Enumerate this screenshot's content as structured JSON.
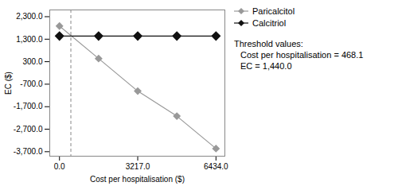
{
  "chart_data": {
    "type": "line",
    "x": [
      0.0,
      1608.5,
      3217.0,
      4825.5,
      6434.0
    ],
    "series": [
      {
        "name": "Paricalcitol",
        "color": "#999999",
        "marker": "diamond",
        "values": [
          1887.0,
          440.0,
          -1007.0,
          -2120.0,
          -3560.0
        ]
      },
      {
        "name": "Calcitriol",
        "color": "#111111",
        "marker": "diamond",
        "values": [
          1440.0,
          1440.0,
          1440.0,
          1440.0,
          1440.0
        ]
      }
    ],
    "threshold_line": {
      "x": 468.1,
      "color": "#888888",
      "line_style": "dashed"
    },
    "xlabel": "Cost per hospitalisation ($)",
    "ylabel": "EC ($)",
    "xlim": [
      -400,
      6800
    ],
    "ylim": [
      -3900,
      2600
    ],
    "xticks": [
      {
        "value": 0.0,
        "label": "0.0"
      },
      {
        "value": 3217.0,
        "label": "3217.0"
      },
      {
        "value": 6434.0,
        "label": "6434.0"
      }
    ],
    "yticks": [
      {
        "value": 2300.0,
        "label": "2,300.0"
      },
      {
        "value": 1300.0,
        "label": "1,300.0"
      },
      {
        "value": 300.0,
        "label": "300.0"
      },
      {
        "value": -700.0,
        "label": "-700.0"
      },
      {
        "value": -1700.0,
        "label": "-1,700.0"
      },
      {
        "value": -2700.0,
        "label": "-2,700.0"
      },
      {
        "value": -3700.0,
        "label": "-3,700.0"
      }
    ],
    "annotations": [
      "Threshold values:",
      "Cost per hospitalisation = 468.1",
      "EC = 1,440.0"
    ],
    "legend": "right",
    "grid": false
  }
}
